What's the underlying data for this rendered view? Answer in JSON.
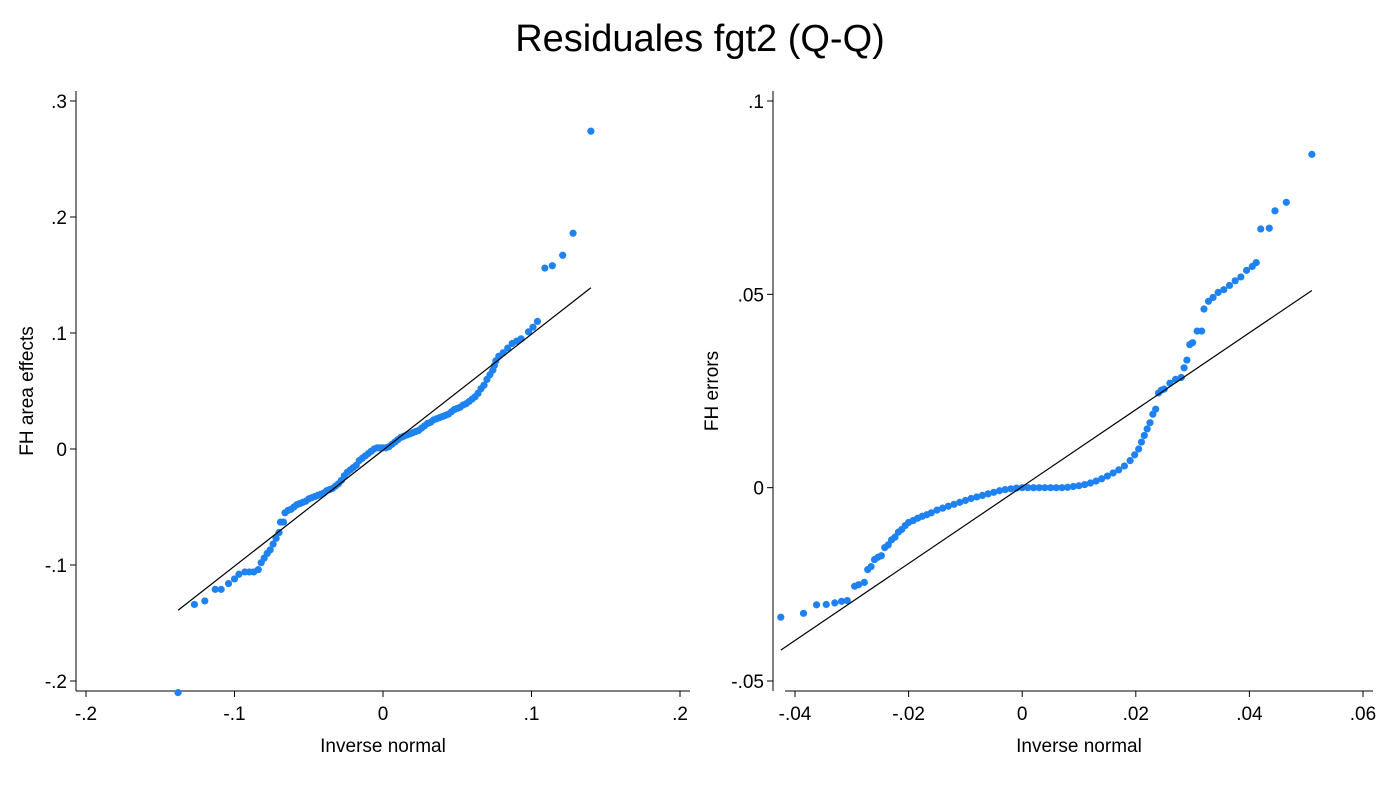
{
  "title": "Residuales fgt2 (Q-Q)",
  "colors": {
    "points": "#1e82f0",
    "line": "#000000",
    "axis": "#000000"
  },
  "chart_data": [
    {
      "type": "scatter",
      "subtype": "qq-plot",
      "xlabel": "Inverse normal",
      "ylabel": "FH area effects",
      "xlim": [
        -0.2,
        0.2
      ],
      "ylim": [
        -0.2,
        0.3
      ],
      "xticks": [
        -0.2,
        -0.1,
        0,
        0.1,
        0.2
      ],
      "xtick_labels": [
        "-.2",
        "-.1",
        "0",
        ".1",
        ".2"
      ],
      "yticks": [
        -0.2,
        -0.1,
        0,
        0.1,
        0.2,
        0.3
      ],
      "ytick_labels": [
        "-.2",
        "-.1",
        "0",
        ".1",
        ".2",
        ".3"
      ],
      "grid": false,
      "reference_line": {
        "x": [
          -0.138,
          0.14
        ],
        "y": [
          -0.139,
          0.139
        ]
      },
      "points": [
        [
          -0.138,
          -0.21
        ],
        [
          -0.127,
          -0.134
        ],
        [
          -0.12,
          -0.131
        ],
        [
          -0.113,
          -0.121
        ],
        [
          -0.109,
          -0.121
        ],
        [
          -0.104,
          -0.116
        ],
        [
          -0.1,
          -0.112
        ],
        [
          -0.097,
          -0.108
        ],
        [
          -0.093,
          -0.106
        ],
        [
          -0.09,
          -0.106
        ],
        [
          -0.087,
          -0.106
        ],
        [
          -0.084,
          -0.104
        ],
        [
          -0.082,
          -0.098
        ],
        [
          -0.08,
          -0.094
        ],
        [
          -0.078,
          -0.09
        ],
        [
          -0.076,
          -0.087
        ],
        [
          -0.074,
          -0.082
        ],
        [
          -0.072,
          -0.077
        ],
        [
          -0.07,
          -0.072
        ],
        [
          -0.069,
          -0.063
        ],
        [
          -0.067,
          -0.063
        ],
        [
          -0.066,
          -0.055
        ],
        [
          -0.064,
          -0.053
        ],
        [
          -0.062,
          -0.052
        ],
        [
          -0.06,
          -0.05
        ],
        [
          -0.058,
          -0.048
        ],
        [
          -0.056,
          -0.047
        ],
        [
          -0.054,
          -0.046
        ],
        [
          -0.052,
          -0.045
        ],
        [
          -0.05,
          -0.043
        ],
        [
          -0.048,
          -0.042
        ],
        [
          -0.046,
          -0.041
        ],
        [
          -0.044,
          -0.04
        ],
        [
          -0.042,
          -0.039
        ],
        [
          -0.04,
          -0.038
        ],
        [
          -0.038,
          -0.036
        ],
        [
          -0.036,
          -0.035
        ],
        [
          -0.034,
          -0.034
        ],
        [
          -0.032,
          -0.032
        ],
        [
          -0.03,
          -0.03
        ],
        [
          -0.028,
          -0.027
        ],
        [
          -0.026,
          -0.023
        ],
        [
          -0.024,
          -0.02
        ],
        [
          -0.022,
          -0.018
        ],
        [
          -0.02,
          -0.016
        ],
        [
          -0.018,
          -0.014
        ],
        [
          -0.016,
          -0.01
        ],
        [
          -0.014,
          -0.008
        ],
        [
          -0.012,
          -0.006
        ],
        [
          -0.01,
          -0.004
        ],
        [
          -0.008,
          -0.002
        ],
        [
          -0.006,
          0.0
        ],
        [
          -0.004,
          0.001
        ],
        [
          -0.002,
          0.001
        ],
        [
          0.0,
          0.001
        ],
        [
          0.002,
          0.001
        ],
        [
          0.004,
          0.002
        ],
        [
          0.006,
          0.004
        ],
        [
          0.008,
          0.006
        ],
        [
          0.01,
          0.008
        ],
        [
          0.012,
          0.01
        ],
        [
          0.014,
          0.011
        ],
        [
          0.016,
          0.012
        ],
        [
          0.018,
          0.013
        ],
        [
          0.02,
          0.014
        ],
        [
          0.022,
          0.015
        ],
        [
          0.024,
          0.016
        ],
        [
          0.026,
          0.018
        ],
        [
          0.028,
          0.02
        ],
        [
          0.03,
          0.022
        ],
        [
          0.032,
          0.023
        ],
        [
          0.034,
          0.025
        ],
        [
          0.036,
          0.026
        ],
        [
          0.038,
          0.027
        ],
        [
          0.04,
          0.028
        ],
        [
          0.042,
          0.029
        ],
        [
          0.044,
          0.03
        ],
        [
          0.046,
          0.032
        ],
        [
          0.048,
          0.034
        ],
        [
          0.05,
          0.035
        ],
        [
          0.052,
          0.036
        ],
        [
          0.054,
          0.038
        ],
        [
          0.056,
          0.039
        ],
        [
          0.058,
          0.041
        ],
        [
          0.06,
          0.043
        ],
        [
          0.062,
          0.045
        ],
        [
          0.064,
          0.048
        ],
        [
          0.066,
          0.052
        ],
        [
          0.068,
          0.055
        ],
        [
          0.07,
          0.06
        ],
        [
          0.072,
          0.064
        ],
        [
          0.074,
          0.068
        ],
        [
          0.075,
          0.072
        ],
        [
          0.076,
          0.076
        ],
        [
          0.078,
          0.08
        ],
        [
          0.081,
          0.083
        ],
        [
          0.084,
          0.087
        ],
        [
          0.087,
          0.091
        ],
        [
          0.09,
          0.093
        ],
        [
          0.093,
          0.095
        ],
        [
          0.098,
          0.101
        ],
        [
          0.101,
          0.105
        ],
        [
          0.104,
          0.11
        ],
        [
          0.109,
          0.156
        ],
        [
          0.114,
          0.158
        ],
        [
          0.121,
          0.167
        ],
        [
          0.128,
          0.186
        ],
        [
          0.14,
          0.274
        ]
      ]
    },
    {
      "type": "scatter",
      "subtype": "qq-plot",
      "xlabel": "Inverse normal",
      "ylabel": "FH errors",
      "xlim": [
        -0.04,
        0.06
      ],
      "ylim": [
        -0.05,
        0.1
      ],
      "xticks": [
        -0.04,
        -0.02,
        0,
        0.02,
        0.04,
        0.06
      ],
      "xtick_labels": [
        "-.04",
        "-.02",
        "0",
        ".02",
        ".04",
        ".06"
      ],
      "yticks": [
        -0.05,
        0,
        0.05,
        0.1
      ],
      "ytick_labels": [
        "-.05",
        "0",
        ".05",
        ".1"
      ],
      "grid": false,
      "reference_line": {
        "x": [
          -0.0425,
          0.051
        ],
        "y": [
          -0.042,
          0.051
        ]
      },
      "points": [
        [
          -0.0425,
          -0.0335
        ],
        [
          -0.0385,
          -0.0325
        ],
        [
          -0.0362,
          -0.0303
        ],
        [
          -0.0345,
          -0.0302
        ],
        [
          -0.033,
          -0.0298
        ],
        [
          -0.0318,
          -0.0294
        ],
        [
          -0.0308,
          -0.0292
        ],
        [
          -0.0295,
          -0.0255
        ],
        [
          -0.0288,
          -0.0251
        ],
        [
          -0.0278,
          -0.0245
        ],
        [
          -0.0272,
          -0.0212
        ],
        [
          -0.0266,
          -0.0204
        ],
        [
          -0.026,
          -0.0186
        ],
        [
          -0.0254,
          -0.018
        ],
        [
          -0.0248,
          -0.0176
        ],
        [
          -0.0242,
          -0.0155
        ],
        [
          -0.0236,
          -0.0148
        ],
        [
          -0.023,
          -0.0135
        ],
        [
          -0.0224,
          -0.0128
        ],
        [
          -0.0218,
          -0.0115
        ],
        [
          -0.0212,
          -0.0108
        ],
        [
          -0.0206,
          -0.0098
        ],
        [
          -0.02,
          -0.009
        ],
        [
          -0.0192,
          -0.0085
        ],
        [
          -0.0184,
          -0.0079
        ],
        [
          -0.0176,
          -0.0074
        ],
        [
          -0.0168,
          -0.007
        ],
        [
          -0.016,
          -0.0065
        ],
        [
          -0.015,
          -0.0058
        ],
        [
          -0.014,
          -0.0053
        ],
        [
          -0.013,
          -0.0048
        ],
        [
          -0.012,
          -0.0043
        ],
        [
          -0.011,
          -0.0038
        ],
        [
          -0.01,
          -0.0033
        ],
        [
          -0.009,
          -0.0028
        ],
        [
          -0.008,
          -0.0024
        ],
        [
          -0.007,
          -0.002
        ],
        [
          -0.006,
          -0.0016
        ],
        [
          -0.005,
          -0.0012
        ],
        [
          -0.004,
          -0.0008
        ],
        [
          -0.003,
          -0.0005
        ],
        [
          -0.002,
          -0.0003
        ],
        [
          -0.001,
          -0.0001
        ],
        [
          0.0,
          0.0
        ],
        [
          0.001,
          0.0
        ],
        [
          0.002,
          0.0
        ],
        [
          0.003,
          0.0
        ],
        [
          0.004,
          0.0
        ],
        [
          0.005,
          0.0
        ],
        [
          0.006,
          0.0
        ],
        [
          0.007,
          0.0
        ],
        [
          0.008,
          0.0001
        ],
        [
          0.009,
          0.0003
        ],
        [
          0.01,
          0.0005
        ],
        [
          0.011,
          0.0008
        ],
        [
          0.012,
          0.0012
        ],
        [
          0.013,
          0.0017
        ],
        [
          0.014,
          0.0023
        ],
        [
          0.015,
          0.003
        ],
        [
          0.016,
          0.0038
        ],
        [
          0.017,
          0.0046
        ],
        [
          0.018,
          0.0056
        ],
        [
          0.019,
          0.007
        ],
        [
          0.0198,
          0.0085
        ],
        [
          0.0205,
          0.01
        ],
        [
          0.021,
          0.0118
        ],
        [
          0.0215,
          0.0135
        ],
        [
          0.022,
          0.0152
        ],
        [
          0.0225,
          0.0168
        ],
        [
          0.023,
          0.019
        ],
        [
          0.0235,
          0.0203
        ],
        [
          0.024,
          0.0245
        ],
        [
          0.0245,
          0.0252
        ],
        [
          0.025,
          0.0255
        ],
        [
          0.026,
          0.027
        ],
        [
          0.027,
          0.028
        ],
        [
          0.028,
          0.0285
        ],
        [
          0.0285,
          0.031
        ],
        [
          0.029,
          0.033
        ],
        [
          0.0295,
          0.037
        ],
        [
          0.03,
          0.0375
        ],
        [
          0.0308,
          0.0405
        ],
        [
          0.0316,
          0.0405
        ],
        [
          0.032,
          0.0462
        ],
        [
          0.0328,
          0.0482
        ],
        [
          0.0336,
          0.0492
        ],
        [
          0.0345,
          0.0505
        ],
        [
          0.0355,
          0.0512
        ],
        [
          0.0365,
          0.0523
        ],
        [
          0.0375,
          0.0535
        ],
        [
          0.0385,
          0.0545
        ],
        [
          0.0395,
          0.0562
        ],
        [
          0.0405,
          0.0572
        ],
        [
          0.0412,
          0.0582
        ],
        [
          0.042,
          0.0669
        ],
        [
          0.0435,
          0.0671
        ],
        [
          0.0445,
          0.0716
        ],
        [
          0.0465,
          0.0738
        ],
        [
          0.051,
          0.0862
        ]
      ]
    }
  ]
}
